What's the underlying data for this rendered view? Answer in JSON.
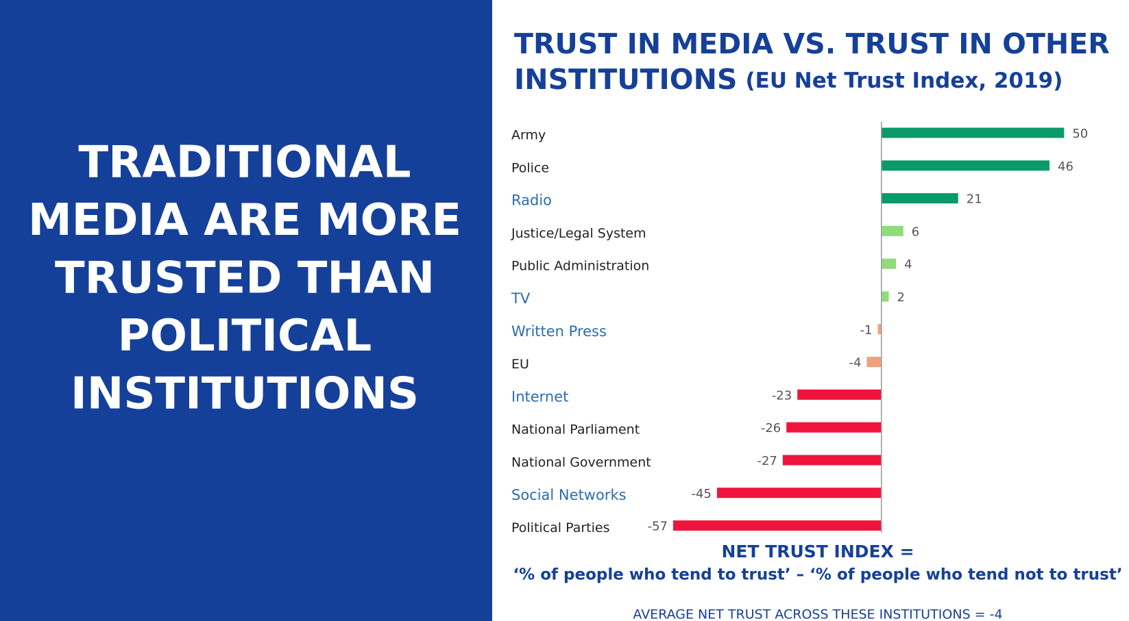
{
  "headline": [
    "TRADITIONAL",
    "MEDIA ARE MORE",
    "TRUSTED THAN",
    "POLITICAL",
    "INSTITUTIONS"
  ],
  "chart_data": {
    "type": "bar",
    "orientation": "horizontal",
    "title": "TRUST IN MEDIA VS. TRUST IN OTHER",
    "title_line2": "INSTITUTIONS",
    "subtitle": "(EU Net Trust Index, 2019)",
    "categories": [
      "Army",
      "Police",
      "Radio",
      "Justice/Legal System",
      "Public Administration",
      "TV",
      "Written Press",
      "EU",
      "Internet",
      "National Parliament",
      "National Government",
      "Social Networks",
      "Political Parties"
    ],
    "category_colors": [
      "#222222",
      "#222222",
      "#2b6cb0",
      "#222222",
      "#222222",
      "#2b6cb0",
      "#2b6cb0",
      "#222222",
      "#2b6cb0",
      "#222222",
      "#222222",
      "#2b6cb0",
      "#222222"
    ],
    "values": [
      50,
      46,
      21,
      6,
      4,
      2,
      -1,
      -4,
      -23,
      -26,
      -27,
      -45,
      -57
    ],
    "colors": [
      "#0a9a6a",
      "#0a9a6a",
      "#0a9a6a",
      "#8fdc7a",
      "#8fdc7a",
      "#8fdc7a",
      "#f4a07e",
      "#f4a07e",
      "#f0143c",
      "#f0143c",
      "#f0143c",
      "#f0143c",
      "#f0143c"
    ],
    "xlim": [
      -60,
      55
    ],
    "note_title": "NET TRUST INDEX =",
    "note_formula": "‘% of people who tend to trust’ – ‘% of people who tend not to trust’",
    "average_note": "AVERAGE NET TRUST ACROSS THESE INSTITUTIONS = -4"
  }
}
